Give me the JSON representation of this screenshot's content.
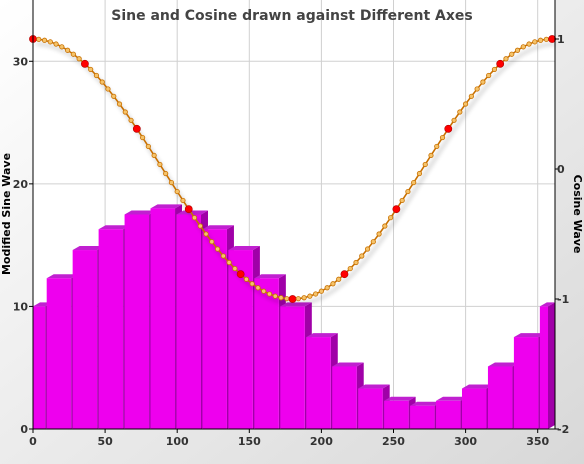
{
  "chart_data": {
    "type": "bar",
    "title": "Sine and Cosine drawn against Different Axes",
    "xlabel": "",
    "ylabel_left": "Modified Sine Wave",
    "ylabel_right": "Cosine Wave",
    "xlim": [
      0,
      362
    ],
    "ylim_left": [
      0,
      35
    ],
    "ylim_right": [
      -2,
      1.3
    ],
    "xticks": [
      0,
      50,
      100,
      150,
      200,
      250,
      300,
      350
    ],
    "yticks_left": [
      0,
      10,
      20,
      30
    ],
    "yticks_right": [
      -2,
      -1,
      0,
      1
    ],
    "grid": true,
    "series": [
      {
        "name": "Modified Sine Wave",
        "type": "bar",
        "axis": "left",
        "x": [
          0,
          18,
          36,
          54,
          72,
          90,
          108,
          126,
          144,
          162,
          180,
          198,
          216,
          234,
          252,
          270,
          288,
          306,
          324,
          342,
          360
        ],
        "values": [
          10,
          12.3,
          14.6,
          16.3,
          17.5,
          18,
          17.5,
          16.3,
          14.6,
          12.3,
          10,
          7.5,
          5.1,
          3.3,
          2.3,
          1.9,
          2.3,
          3.3,
          5.1,
          7.5,
          10
        ]
      },
      {
        "name": "Cosine Wave",
        "type": "line",
        "axis": "right",
        "x_start": 0,
        "x_end": 360,
        "x_step": 4,
        "marker_every_deg": 36,
        "values_formula": "cos(x)"
      }
    ]
  },
  "colors": {
    "bar_face": "#ee00ee",
    "bar_side": "#a000a8",
    "bar_top": "#c020d0",
    "line": "#c87000",
    "marker": "#ff0000",
    "small_marker_fill": "#f5c36a"
  }
}
